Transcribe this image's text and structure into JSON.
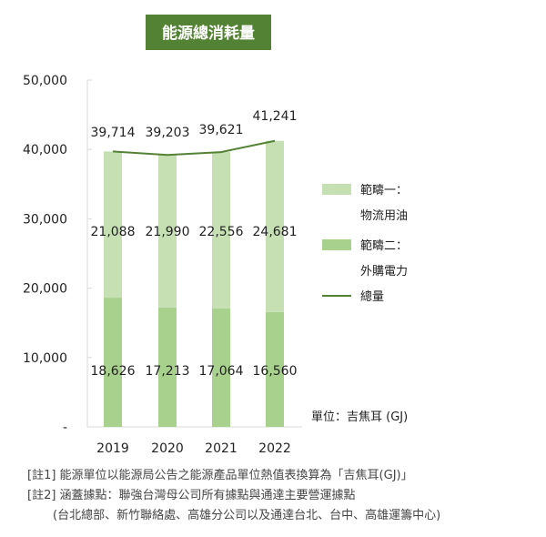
{
  "chart_data": {
    "type": "bar",
    "title": "能源總消耗量",
    "categories": [
      "2019",
      "2020",
      "2021",
      "2022"
    ],
    "series": [
      {
        "name": "範疇一：物流用油",
        "legend_lines": [
          "範疇一：",
          "物流用油"
        ],
        "kind": "bar",
        "color": "#c6e0b4",
        "values": [
          21088,
          21990,
          22556,
          24681
        ],
        "labels": [
          "21,088",
          "21,990",
          "22,556",
          "24,681"
        ]
      },
      {
        "name": "範疇二：外購電力",
        "legend_lines": [
          "範疇二：",
          "外購電力"
        ],
        "kind": "bar",
        "color": "#a9d18e",
        "values": [
          18626,
          17213,
          17064,
          16560
        ],
        "labels": [
          "18,626",
          "17,213",
          "17,064",
          "16,560"
        ]
      },
      {
        "name": "總量",
        "legend_lines": [
          "總量"
        ],
        "kind": "line",
        "color": "#548235",
        "values": [
          39714,
          39203,
          39621,
          41241
        ],
        "labels": [
          "39,714",
          "39,203",
          "39,621",
          "41,241"
        ]
      }
    ],
    "stacked": true,
    "ylim": [
      0,
      50000
    ],
    "yticks": [
      0,
      10000,
      20000,
      30000,
      40000,
      50000
    ],
    "ytick_labels": [
      "-",
      "10,000",
      "20,000",
      "30,000",
      "40,000",
      "50,000"
    ],
    "unit_label": "單位：吉焦耳 (GJ)",
    "legend_position": "right",
    "grid": false
  },
  "notes": [
    "[註1] 能源單位以能源局公告之能源產品單位熱值表換算為「吉焦耳(GJ)」",
    "[註2] 涵蓋據點：聯強台灣母公司所有據點與通達主要營運據點",
    "(台北總部、新竹聯絡處、高雄分公司以及通達台北、台中、高雄運籌中心)"
  ]
}
